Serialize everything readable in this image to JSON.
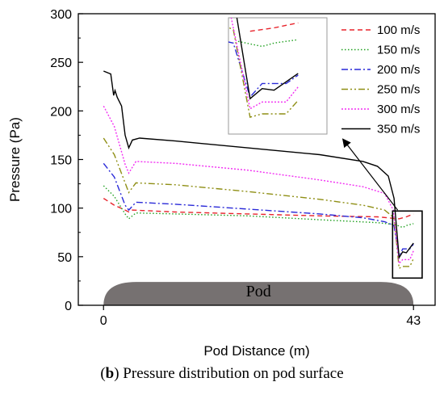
{
  "caption": {
    "label_bold": "b",
    "text": ") Pressure distribution on pod surface"
  },
  "chart_data": {
    "type": "line",
    "xlabel": "Pod Distance (m)",
    "ylabel": "Pressure (Pa)",
    "xlim": [
      -3.5,
      46.0
    ],
    "ylim": [
      0,
      300
    ],
    "x_ticks": [
      0,
      43
    ],
    "y_ticks": [
      0,
      50,
      100,
      150,
      200,
      250,
      300
    ],
    "grid": false,
    "legend_position": "top-right",
    "pod_label": "Pod",
    "pod_extent": [
      0,
      43
    ],
    "pod_height": 24,
    "series": [
      {
        "name": "100 m/s",
        "color": "#e8242c",
        "dash": "6,4",
        "points": [
          [
            0,
            110
          ],
          [
            1.5,
            103
          ],
          [
            3,
            98
          ],
          [
            3.5,
            96
          ],
          [
            4,
            98
          ],
          [
            10,
            96
          ],
          [
            20,
            94
          ],
          [
            30,
            92
          ],
          [
            38,
            91
          ],
          [
            41,
            89
          ],
          [
            42,
            91
          ],
          [
            43,
            94
          ]
        ]
      },
      {
        "name": "150 m/s",
        "color": "#21a121",
        "dash": "1.5,2.5",
        "points": [
          [
            0,
            123
          ],
          [
            1.5,
            112
          ],
          [
            3,
            94
          ],
          [
            3.5,
            89
          ],
          [
            4.5,
            95
          ],
          [
            10,
            94
          ],
          [
            20,
            92
          ],
          [
            30,
            88
          ],
          [
            38,
            85
          ],
          [
            40.5,
            83
          ],
          [
            41.5,
            80
          ],
          [
            42,
            82
          ],
          [
            43,
            84
          ]
        ]
      },
      {
        "name": "200 m/s",
        "color": "#2a2ad8",
        "dash": "8,3,2,3",
        "points": [
          [
            0,
            146
          ],
          [
            1.5,
            132
          ],
          [
            3,
            103
          ],
          [
            3.5,
            98
          ],
          [
            4.5,
            106
          ],
          [
            10,
            104
          ],
          [
            20,
            99
          ],
          [
            30,
            94
          ],
          [
            36,
            90
          ],
          [
            39,
            86
          ],
          [
            40.3,
            82
          ],
          [
            41,
            50
          ],
          [
            41.5,
            58
          ],
          [
            42.5,
            58
          ],
          [
            43,
            63
          ]
        ]
      },
      {
        "name": "250 m/s",
        "color": "#8f8f15",
        "dash": "8,3,2,3,2,3",
        "points": [
          [
            0,
            172
          ],
          [
            1.5,
            155
          ],
          [
            3,
            126
          ],
          [
            3.5,
            116
          ],
          [
            4.5,
            126
          ],
          [
            10,
            124
          ],
          [
            20,
            117
          ],
          [
            30,
            109
          ],
          [
            36,
            103
          ],
          [
            39,
            98
          ],
          [
            40.3,
            90
          ],
          [
            41,
            38
          ],
          [
            41.5,
            40
          ],
          [
            42.5,
            40
          ],
          [
            43,
            48
          ]
        ]
      },
      {
        "name": "300 m/s",
        "color": "#f22ff2",
        "dash": "2,2",
        "points": [
          [
            0,
            205
          ],
          [
            1.5,
            184
          ],
          [
            3,
            145
          ],
          [
            3.5,
            136
          ],
          [
            4.5,
            148
          ],
          [
            10,
            146
          ],
          [
            20,
            139
          ],
          [
            30,
            129
          ],
          [
            36,
            122
          ],
          [
            39,
            115
          ],
          [
            40.2,
            98
          ],
          [
            41,
            43
          ],
          [
            41.5,
            47
          ],
          [
            42.5,
            47
          ],
          [
            43,
            56
          ]
        ]
      },
      {
        "name": "350 m/s",
        "color": "#000000",
        "dash": "",
        "points": [
          [
            0,
            241
          ],
          [
            1,
            238
          ],
          [
            1.4,
            216
          ],
          [
            1.6,
            221
          ],
          [
            1.9,
            214
          ],
          [
            2.5,
            205
          ],
          [
            3,
            175
          ],
          [
            3.5,
            162
          ],
          [
            4,
            170
          ],
          [
            5,
            172
          ],
          [
            10,
            169
          ],
          [
            20,
            162
          ],
          [
            30,
            155
          ],
          [
            36,
            148
          ],
          [
            38,
            143
          ],
          [
            39.5,
            133
          ],
          [
            40.3,
            110
          ],
          [
            41,
            49
          ],
          [
            41.5,
            55
          ],
          [
            42,
            54
          ],
          [
            43,
            64
          ]
        ]
      }
    ],
    "zoom_box": {
      "x": [
        40.1,
        44.2
      ],
      "y": [
        28,
        97
      ]
    },
    "arrow": {
      "from": [
        40.8,
        98
      ],
      "to": [
        33.2,
        171
      ]
    }
  }
}
